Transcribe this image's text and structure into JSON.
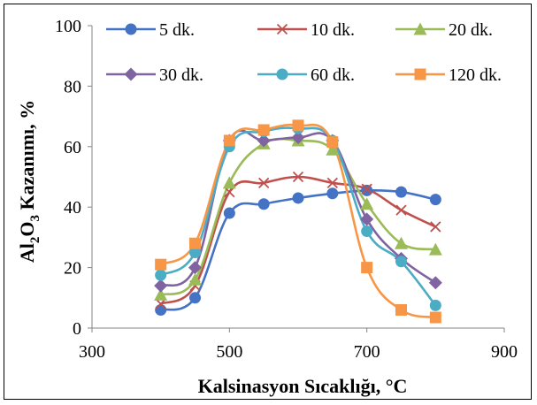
{
  "chart_data": {
    "type": "line",
    "xlabel": "Kalsinasyon Sıcaklığı, °C",
    "ylabel_main": "Al",
    "ylabel_sub": "2",
    "ylabel_main2": "O",
    "ylabel_sub2": "3",
    "ylabel_rest": " Kazanımı, %",
    "xlim": [
      300,
      900
    ],
    "ylim": [
      0,
      100
    ],
    "x_ticks": [
      "300",
      "500",
      "700",
      "900"
    ],
    "x_tick_values": [
      300,
      500,
      700,
      900
    ],
    "y_ticks": [
      "0",
      "20",
      "40",
      "60",
      "80",
      "100"
    ],
    "y_tick_values": [
      0,
      20,
      40,
      60,
      80,
      100
    ],
    "grid": false,
    "legend_position": "top",
    "x": [
      400,
      450,
      500,
      550,
      600,
      650,
      700,
      750,
      800
    ],
    "series": [
      {
        "name": "5 dk.",
        "color": "#4472C4",
        "marker": "circle",
        "values": [
          6,
          10,
          38,
          41,
          43,
          44.5,
          45.5,
          45,
          42.5
        ]
      },
      {
        "name": "10 dk.",
        "color": "#C0504D",
        "marker": "x",
        "values": [
          8,
          14,
          45,
          48,
          50,
          48,
          46,
          39,
          33.5
        ]
      },
      {
        "name": "20 dk.",
        "color": "#9BBB59",
        "marker": "triangle",
        "values": [
          11,
          16,
          48,
          61,
          62,
          59,
          41,
          28,
          26
        ]
      },
      {
        "name": "30 dk.",
        "color": "#8064A2",
        "marker": "diamond",
        "values": [
          14,
          20,
          62,
          62,
          63,
          62,
          36,
          23,
          15
        ]
      },
      {
        "name": "60 dk.",
        "color": "#4BACC6",
        "marker": "circle",
        "values": [
          17.5,
          25,
          60,
          65,
          66,
          62,
          32,
          22,
          7.5
        ]
      },
      {
        "name": "120 dk.",
        "color": "#F79646",
        "marker": "square",
        "values": [
          21,
          28,
          62,
          65.5,
          67,
          61.5,
          20,
          6,
          3.5
        ]
      }
    ]
  }
}
